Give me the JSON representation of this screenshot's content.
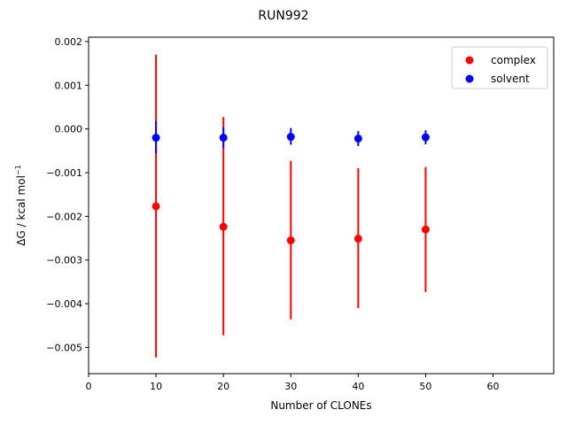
{
  "chart_data": {
    "type": "scatter",
    "title": "RUN992",
    "xlabel": "Number of CLONEs",
    "ylabel_main": "ΔG / kcal mol",
    "ylabel_sup": "−1",
    "xlim": [
      0,
      69
    ],
    "ylim": [
      -0.0056,
      0.0021
    ],
    "xticks": [
      0,
      10,
      20,
      30,
      40,
      50,
      60
    ],
    "xtick_labels": [
      "0",
      "10",
      "20",
      "30",
      "40",
      "50",
      "60"
    ],
    "yticks": [
      0.002,
      0.001,
      0.0,
      -0.001,
      -0.002,
      -0.003,
      -0.004,
      -0.005
    ],
    "ytick_labels": [
      "0.002",
      "0.001",
      "0.000",
      "−0.001",
      "−0.002",
      "−0.003",
      "−0.004",
      "−0.005"
    ],
    "grid": false,
    "legend_position": "top-right",
    "series": [
      {
        "name": "complex",
        "color": "#ff0000",
        "x": [
          10,
          20,
          30,
          40,
          50
        ],
        "y": [
          -0.00177,
          -0.00224,
          -0.00255,
          -0.00251,
          -0.0023
        ],
        "err_low": [
          -0.00523,
          -0.00472,
          -0.00436,
          -0.0041,
          -0.00373
        ],
        "err_high": [
          0.0017,
          0.00027,
          -0.00073,
          -0.0009,
          -0.00087
        ]
      },
      {
        "name": "solvent",
        "color": "#0000ff",
        "x": [
          10,
          20,
          30,
          40,
          50
        ],
        "y": [
          -0.0002,
          -0.0002,
          -0.00018,
          -0.00022,
          -0.00019
        ],
        "err_low": [
          -0.00056,
          -0.00043,
          -0.00036,
          -0.00039,
          -0.00035
        ],
        "err_high": [
          0.00018,
          4e-05,
          2e-05,
          -5e-05,
          -3e-05
        ]
      }
    ]
  }
}
